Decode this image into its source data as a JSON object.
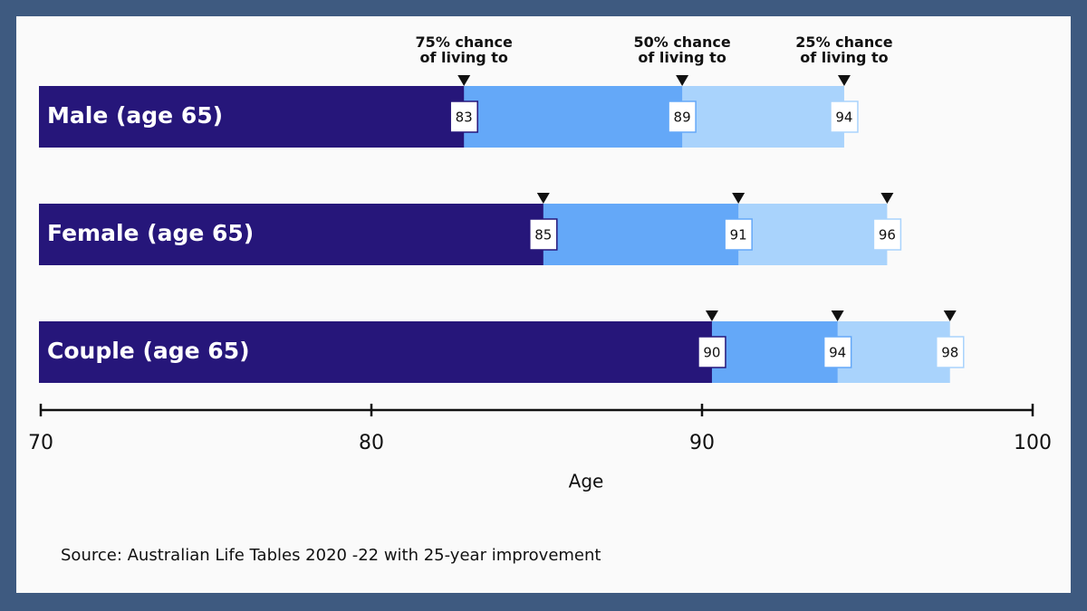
{
  "chart_data": {
    "type": "bar",
    "orientation": "horizontal",
    "categories": [
      "Male (age 65)",
      "Female (age 65)",
      "Couple (age 65)"
    ],
    "series": [
      {
        "name": "75% chance of living to",
        "color": "#26167a",
        "values": [
          82.8,
          85.2,
          90.3
        ],
        "value_labels": [
          "83",
          "85",
          "90"
        ]
      },
      {
        "name": "50% chance of living to",
        "color": "#64a8f8",
        "values": [
          89.4,
          91.1,
          94.1
        ],
        "value_labels": [
          "89",
          "91",
          "94"
        ]
      },
      {
        "name": "25% chance of living to",
        "color": "#a9d3fc",
        "values": [
          94.3,
          95.6,
          97.5
        ],
        "value_labels": [
          "94",
          "96",
          "98"
        ]
      }
    ],
    "xlim": [
      70,
      100
    ],
    "xticks": [
      70,
      80,
      90,
      100
    ],
    "x_label": "Age",
    "source": "Source: Australian Life Tables 2020 -22 with 25-year improvement"
  }
}
